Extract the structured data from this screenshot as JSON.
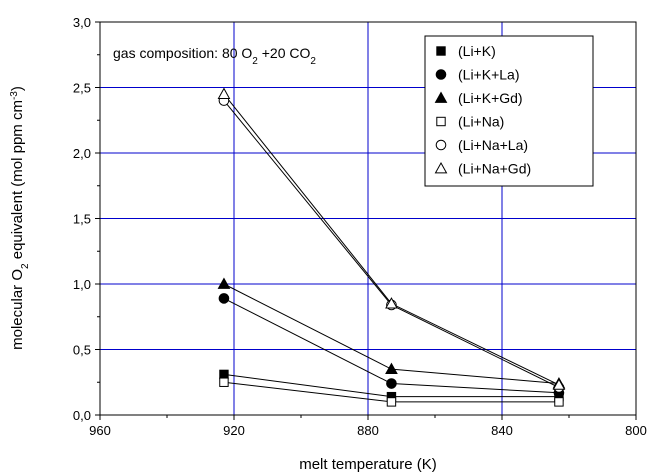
{
  "chart_data": {
    "type": "line",
    "xlabel": "melt temperature (K)",
    "ylabel_parts": [
      "molecular O",
      "2",
      " equivalent (mol ppm cm",
      "-3",
      ")"
    ],
    "annotation_parts": [
      "gas composition: 80 O",
      "2",
      " +20 CO",
      "2"
    ],
    "xlim": [
      960,
      800
    ],
    "ylim": [
      0.0,
      3.0
    ],
    "x_ticks": [
      "960",
      "920",
      "880",
      "840",
      "800"
    ],
    "y_ticks": [
      "0,0",
      "0,5",
      "1,0",
      "1,5",
      "2,0",
      "2,5",
      "3,0"
    ],
    "x_tick_values": [
      960,
      920,
      880,
      840,
      800
    ],
    "y_tick_values": [
      0.0,
      0.5,
      1.0,
      1.5,
      2.0,
      2.5,
      3.0
    ],
    "grid": true,
    "grid_color": "#0000cc",
    "legend_position": "top-right",
    "series": [
      {
        "name": "(Li+K)",
        "marker": "filled-square",
        "x": [
          923,
          873,
          823
        ],
        "y": [
          0.31,
          0.14,
          0.14
        ]
      },
      {
        "name": "(Li+K+La)",
        "marker": "filled-circle",
        "x": [
          923,
          873,
          823
        ],
        "y": [
          0.89,
          0.24,
          0.17
        ]
      },
      {
        "name": "(Li+K+Gd)",
        "marker": "filled-triangle",
        "x": [
          923,
          873,
          823
        ],
        "y": [
          1.0,
          0.35,
          0.24
        ]
      },
      {
        "name": "(Li+Na)",
        "marker": "open-square",
        "x": [
          923,
          873,
          823
        ],
        "y": [
          0.25,
          0.1,
          0.1
        ]
      },
      {
        "name": "(Li+Na+La)",
        "marker": "open-circle",
        "x": [
          923,
          873,
          823
        ],
        "y": [
          2.4,
          0.84,
          0.21
        ]
      },
      {
        "name": "(Li+Na+Gd)",
        "marker": "open-triangle",
        "x": [
          923,
          873,
          823
        ],
        "y": [
          2.45,
          0.85,
          0.23
        ]
      }
    ]
  }
}
